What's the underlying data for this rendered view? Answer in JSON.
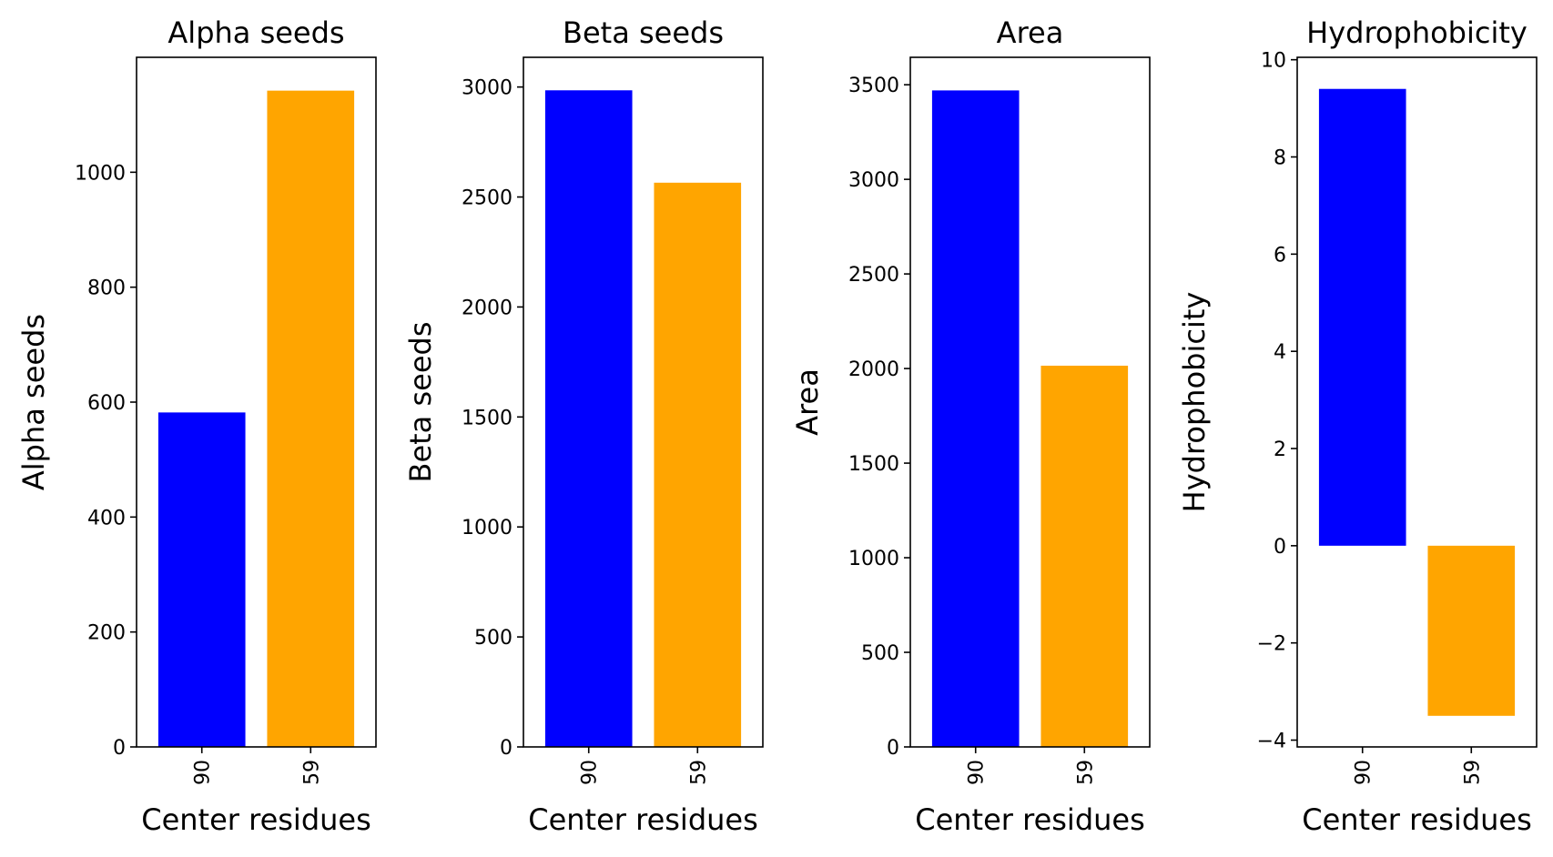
{
  "figure": {
    "colors": {
      "series_a": "#0000ff",
      "series_b": "#ffa500"
    }
  },
  "chart_data": [
    {
      "type": "bar",
      "title": "Alpha seeds",
      "xlabel": "Center residues",
      "ylabel": "Alpha seeds",
      "categories": [
        "90",
        "59"
      ],
      "values": [
        582,
        1142
      ],
      "colors": [
        "#0000ff",
        "#ffa500"
      ],
      "ylim": [
        0,
        1200
      ],
      "yticks": [
        0,
        200,
        400,
        600,
        800,
        1000
      ],
      "yticklabels": [
        "0",
        "200",
        "400",
        "600",
        "800",
        "1000"
      ],
      "grid": false
    },
    {
      "type": "bar",
      "title": "Beta seeds",
      "xlabel": "Center residues",
      "ylabel": "Beta seeds",
      "categories": [
        "90",
        "59"
      ],
      "values": [
        2985,
        2565
      ],
      "colors": [
        "#0000ff",
        "#ffa500"
      ],
      "ylim": [
        0,
        3135
      ],
      "yticks": [
        0,
        500,
        1000,
        1500,
        2000,
        2500,
        3000
      ],
      "yticklabels": [
        "0",
        "500",
        "1000",
        "1500",
        "2000",
        "2500",
        "3000"
      ],
      "grid": false
    },
    {
      "type": "bar",
      "title": "Area",
      "xlabel": "Center residues",
      "ylabel": "Area",
      "categories": [
        "90",
        "59"
      ],
      "values": [
        3470,
        2015
      ],
      "colors": [
        "#0000ff",
        "#ffa500"
      ],
      "ylim": [
        0,
        3645
      ],
      "yticks": [
        0,
        500,
        1000,
        1500,
        2000,
        2500,
        3000,
        3500
      ],
      "yticklabels": [
        "0",
        "500",
        "1000",
        "1500",
        "2000",
        "2500",
        "3000",
        "3500"
      ],
      "grid": false
    },
    {
      "type": "bar",
      "title": "Hydrophobicity",
      "xlabel": "Center residues",
      "ylabel": "Hydrophobicity",
      "categories": [
        "90",
        "59"
      ],
      "values": [
        9.4,
        -3.5
      ],
      "colors": [
        "#0000ff",
        "#ffa500"
      ],
      "ylim": [
        -4.14,
        10.05
      ],
      "yticks": [
        -4,
        -2,
        0,
        2,
        4,
        6,
        8,
        10
      ],
      "yticklabels": [
        "−4",
        "−2",
        "0",
        "2",
        "4",
        "6",
        "8",
        "10"
      ],
      "grid": false
    }
  ]
}
